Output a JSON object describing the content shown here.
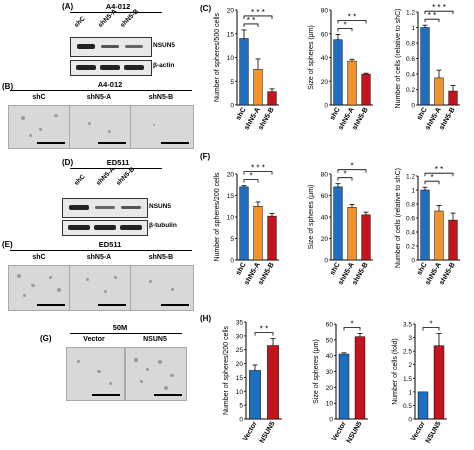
{
  "panels": {
    "A": {
      "label": "(A)",
      "cell_line": "A4-012",
      "lanes": [
        "shC",
        "shN5-A",
        "shN5-B"
      ],
      "bands": [
        "NSUN5",
        "β-actin"
      ]
    },
    "B": {
      "label": "(B)",
      "cell_line": "A4-012",
      "conditions": [
        "shC",
        "shN5-A",
        "shN5-B"
      ]
    },
    "D": {
      "label": "(D)",
      "cell_line": "ED511",
      "lanes": [
        "shC",
        "shN5-A",
        "shN5-B"
      ],
      "bands": [
        "NSUN5",
        "β-tubulin"
      ]
    },
    "E": {
      "label": "(E)",
      "cell_line": "ED511",
      "conditions": [
        "shC",
        "shN5-A",
        "shN5-B"
      ]
    },
    "G": {
      "label": "(G)",
      "cell_line": "50M",
      "conditions": [
        "Vector",
        "NSUN5"
      ]
    },
    "C": {
      "label": "(C)"
    },
    "F": {
      "label": "(F)"
    },
    "H": {
      "label": "(H)"
    }
  },
  "colors": {
    "blue": "#1f6fc0",
    "orange": "#f2922a",
    "red": "#c2141c"
  },
  "chart_data": [
    {
      "type": "bar",
      "panel": "C",
      "categories": [
        "shC",
        "shN5-A",
        "shN5-B"
      ],
      "values": [
        14,
        7.5,
        2.8
      ],
      "errors": [
        1.8,
        2.2,
        0.6
      ],
      "ylabel": "Number of spheres/500 cells",
      "ylim": [
        0,
        20
      ],
      "yticks": [
        "0",
        "5",
        "10",
        "15",
        "20"
      ],
      "sig": [
        {
          "from": 0,
          "to": 1,
          "text": "* *"
        },
        {
          "from": 0,
          "to": 2,
          "text": "* * *"
        }
      ]
    },
    {
      "type": "bar",
      "panel": "C",
      "categories": [
        "shC",
        "shN5-A",
        "shN5-B"
      ],
      "values": [
        55,
        37,
        26
      ],
      "errors": [
        4.5,
        1.5,
        0.8
      ],
      "ylabel": "Size of spheres (μm)",
      "ylim": [
        0,
        80
      ],
      "yticks": [
        "0",
        "20",
        "40",
        "60",
        "80"
      ],
      "sig": [
        {
          "from": 0,
          "to": 1,
          "text": "*"
        },
        {
          "from": 0,
          "to": 2,
          "text": "* *"
        }
      ]
    },
    {
      "type": "bar",
      "panel": "C",
      "categories": [
        "shC",
        "shN5-A",
        "shN5-B"
      ],
      "values": [
        1.0,
        0.35,
        0.18
      ],
      "errors": [
        0.03,
        0.1,
        0.07
      ],
      "ylabel": "Number of cells (relative to shC)",
      "ylim": [
        0,
        1.2
      ],
      "yticks": [
        "0",
        "0.2",
        "0.4",
        "0.6",
        "0.8",
        "1",
        "1.2"
      ],
      "sig": [
        {
          "from": 0,
          "to": 1,
          "text": "* *"
        },
        {
          "from": 0,
          "to": 2,
          "text": "* * *"
        }
      ]
    },
    {
      "type": "bar",
      "panel": "F",
      "categories": [
        "shC",
        "shN5-A",
        "shN5-B"
      ],
      "values": [
        17,
        12.5,
        10.2
      ],
      "errors": [
        0.3,
        1.0,
        0.6
      ],
      "ylabel": "Number of spheres/200 cells",
      "ylim": [
        0,
        20
      ],
      "yticks": [
        "0",
        "5",
        "10",
        "15",
        "20"
      ],
      "sig": [
        {
          "from": 0,
          "to": 1,
          "text": "*"
        },
        {
          "from": 0,
          "to": 2,
          "text": "* * *"
        }
      ]
    },
    {
      "type": "bar",
      "panel": "F",
      "categories": [
        "shC",
        "shN5-A",
        "shN5-B"
      ],
      "values": [
        68,
        49,
        42
      ],
      "errors": [
        3,
        2.5,
        2.5
      ],
      "ylabel": "Size of spheres (μm)",
      "ylim": [
        0,
        80
      ],
      "yticks": [
        "0",
        "20",
        "40",
        "60",
        "80"
      ],
      "sig": [
        {
          "from": 0,
          "to": 1,
          "text": "*"
        },
        {
          "from": 0,
          "to": 2,
          "text": "*"
        }
      ]
    },
    {
      "type": "bar",
      "panel": "F",
      "categories": [
        "shC",
        "shN5-A",
        "shN5-B"
      ],
      "values": [
        1.0,
        0.7,
        0.57
      ],
      "errors": [
        0.04,
        0.08,
        0.1
      ],
      "ylabel": "Number of cells (relative to shC)",
      "ylim": [
        0,
        1.2
      ],
      "yticks": [
        "0",
        "0.2",
        "0.4",
        "0.6",
        "0.8",
        "1",
        "1.2"
      ],
      "sig": [
        {
          "from": 0,
          "to": 1,
          "text": "*"
        },
        {
          "from": 0,
          "to": 2,
          "text": "* *"
        }
      ]
    },
    {
      "type": "bar",
      "panel": "H",
      "categories": [
        "Vector",
        "NSUN5"
      ],
      "values": [
        17.5,
        26.5
      ],
      "errors": [
        2,
        2.5
      ],
      "ylabel": "Number of spheres/200 cells",
      "ylim": [
        0,
        35
      ],
      "yticks": [
        "0",
        "5",
        "10",
        "15",
        "20",
        "25",
        "30",
        "35"
      ],
      "sig": [
        {
          "from": 0,
          "to": 1,
          "text": "* *"
        }
      ]
    },
    {
      "type": "bar",
      "panel": "H",
      "categories": [
        "Vector",
        "NSUN5"
      ],
      "values": [
        41,
        52
      ],
      "errors": [
        0.8,
        2
      ],
      "ylabel": "Size of spheres (μm)",
      "ylim": [
        0,
        60
      ],
      "yticks": [
        "0",
        "10",
        "20",
        "30",
        "40",
        "50",
        "60"
      ],
      "sig": [
        {
          "from": 0,
          "to": 1,
          "text": "*"
        }
      ]
    },
    {
      "type": "bar",
      "panel": "H",
      "categories": [
        "Vector",
        "NSUN5"
      ],
      "values": [
        1.0,
        2.7
      ],
      "errors": [
        0,
        0.45
      ],
      "ylabel": "Number of cells (fold)",
      "ylim": [
        0,
        3.5
      ],
      "yticks": [
        "0",
        "0.5",
        "1",
        "1.5",
        "2",
        "2.5",
        "3",
        "3.5"
      ],
      "sig": [
        {
          "from": 0,
          "to": 1,
          "text": "*"
        }
      ]
    }
  ]
}
